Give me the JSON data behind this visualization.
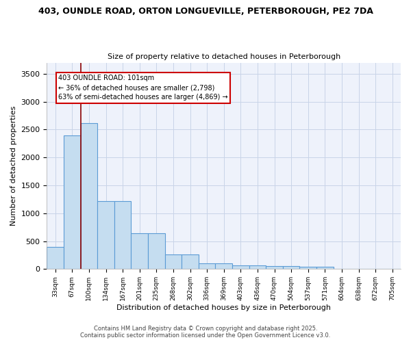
{
  "title_line1": "403, OUNDLE ROAD, ORTON LONGUEVILLE, PETERBOROUGH, PE2 7DA",
  "title_line2": "Size of property relative to detached houses in Peterborough",
  "xlabel": "Distribution of detached houses by size in Peterborough",
  "ylabel": "Number of detached properties",
  "categories": [
    "33sqm",
    "67sqm",
    "100sqm",
    "134sqm",
    "167sqm",
    "201sqm",
    "235sqm",
    "268sqm",
    "302sqm",
    "336sqm",
    "369sqm",
    "403sqm",
    "436sqm",
    "470sqm",
    "504sqm",
    "537sqm",
    "571sqm",
    "604sqm",
    "638sqm",
    "672sqm",
    "705sqm"
  ],
  "values": [
    400,
    2400,
    2620,
    1220,
    1220,
    640,
    640,
    260,
    260,
    105,
    105,
    60,
    60,
    50,
    50,
    35,
    35,
    10,
    10,
    8,
    8
  ],
  "bar_color": "#c5ddf0",
  "bar_edge_color": "#5b9bd5",
  "vline_x": 1.5,
  "vline_color": "#8b0000",
  "annotation_text_line1": "403 OUNDLE ROAD: 101sqm",
  "annotation_text_line2": "← 36% of detached houses are smaller (2,798)",
  "annotation_text_line3": "63% of semi-detached houses are larger (4,869) →",
  "ylim": [
    0,
    3700
  ],
  "yticks": [
    0,
    500,
    1000,
    1500,
    2000,
    2500,
    3000,
    3500
  ],
  "bg_color": "#eef2fb",
  "grid_color": "#c8d4e8",
  "footer_line1": "Contains HM Land Registry data © Crown copyright and database right 2025.",
  "footer_line2": "Contains public sector information licensed under the Open Government Licence v3.0."
}
